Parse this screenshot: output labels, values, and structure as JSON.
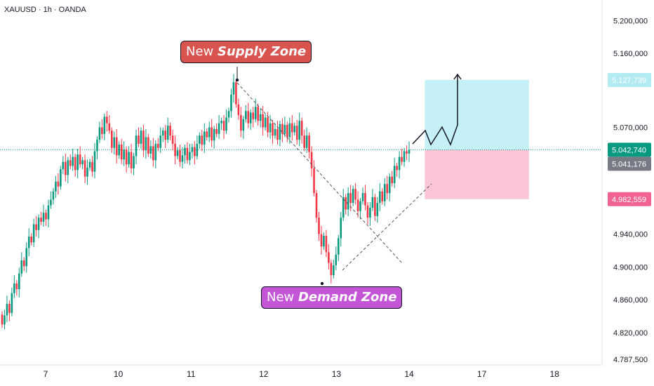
{
  "header": {
    "symbol_line": "XAUUSD · 1h · OANDA"
  },
  "annotations": {
    "supply": {
      "prefix": "New ",
      "bold": "Supply Zone"
    },
    "demand": {
      "prefix": "New ",
      "bold": "Demand Zone"
    }
  },
  "colors": {
    "up": "#089981",
    "down": "#f23645",
    "target_zone": "#b2ebf2",
    "stop_zone": "#f8bbd0",
    "supply_label": "#d9534f",
    "demand_label": "#c355d6",
    "target_tag": "#b2ebf2",
    "current_tag": "#089981",
    "gray_tag": "#787b86",
    "stop_tag": "#f06292"
  },
  "chart_data": {
    "type": "candlestick",
    "y_axis": {
      "ylim": [
        4787.5,
        5220
      ],
      "tick_labels": [
        "5.200,000",
        "5.160,000",
        "5.070,000",
        "4.940,000",
        "4.900,000",
        "4.860,000",
        "4.820,000",
        "4.787,500"
      ],
      "tick_values": [
        5200,
        5160,
        5070,
        4940,
        4900,
        4860,
        4820,
        4787.5
      ]
    },
    "x_axis": {
      "tick_labels": [
        "7",
        "10",
        "11",
        "12",
        "13",
        "14",
        "17",
        "18"
      ],
      "tick_index": [
        0,
        37,
        74,
        111,
        148,
        185,
        222,
        259
      ]
    },
    "price_tags": [
      {
        "label": "5.127,739",
        "value": 5127.739,
        "style": "target"
      },
      {
        "label": "5.042,740",
        "value": 5042.74,
        "style": "current"
      },
      {
        "label": "5.041,176",
        "value": 5041.176,
        "style": "gray"
      },
      {
        "label": "4.982,559",
        "value": 4982.559,
        "style": "stop"
      }
    ],
    "current_price": 5042.74,
    "zones": {
      "target": {
        "from": 5042.74,
        "to": 5127.739,
        "start_index": 193,
        "end_index": 246
      },
      "stop": {
        "from": 4982.559,
        "to": 5042.74,
        "start_index": 193,
        "end_index": 246
      }
    },
    "closes": [
      4830,
      4841,
      4855,
      4844,
      4868,
      4880,
      4873,
      4892,
      4908,
      4901,
      4923,
      4937,
      4930,
      4952,
      4945,
      4960,
      4955,
      4966,
      4958,
      4975,
      4982,
      4992,
      5004,
      4998,
      5019,
      5028,
      5012,
      5030,
      5023,
      5034,
      5018,
      5037,
      5025,
      5030,
      5010,
      5021,
      5028,
      5016,
      5041,
      5055,
      5070,
      5062,
      5083,
      5075,
      5066,
      5045,
      5058,
      5036,
      5049,
      5031,
      5043,
      5025,
      5040,
      5020,
      5035,
      5060,
      5050,
      5066,
      5042,
      5058,
      5038,
      5047,
      5030,
      5050,
      5045,
      5060,
      5066,
      5055,
      5072,
      5060,
      5050,
      5035,
      5042,
      5028,
      5036,
      5045,
      5030,
      5040,
      5046,
      5035,
      5050,
      5060,
      5049,
      5065,
      5058,
      5070,
      5054,
      5068,
      5062,
      5075,
      5078,
      5066,
      5082,
      5090,
      5110,
      5125,
      5098,
      5085,
      5066,
      5080,
      5090,
      5075,
      5088,
      5080,
      5095,
      5078,
      5086,
      5070,
      5082,
      5064,
      5075,
      5060,
      5068,
      5055,
      5074,
      5062,
      5073,
      5058,
      5075,
      5064,
      5072,
      5055,
      5078,
      5060,
      5045,
      5060,
      5040,
      5020,
      4990,
      4960,
      4940,
      4925,
      4938,
      4918,
      4905,
      4890,
      4902,
      4915,
      4935,
      4960,
      4985,
      4970,
      4990,
      4978,
      4995,
      4982,
      4968,
      4980,
      4990,
      4975,
      4960,
      4972,
      4985,
      4962,
      4978,
      4992,
      4980,
      5001,
      4990,
      5010,
      5002,
      5023,
      5018,
      5034,
      5028,
      5041,
      5038,
      5042.74
    ],
    "drawings": {
      "projection_path": "zigzag upward into target zone with arrow at 5.127,739",
      "lines": "dashed wedge lines from supply high and demand low"
    }
  }
}
